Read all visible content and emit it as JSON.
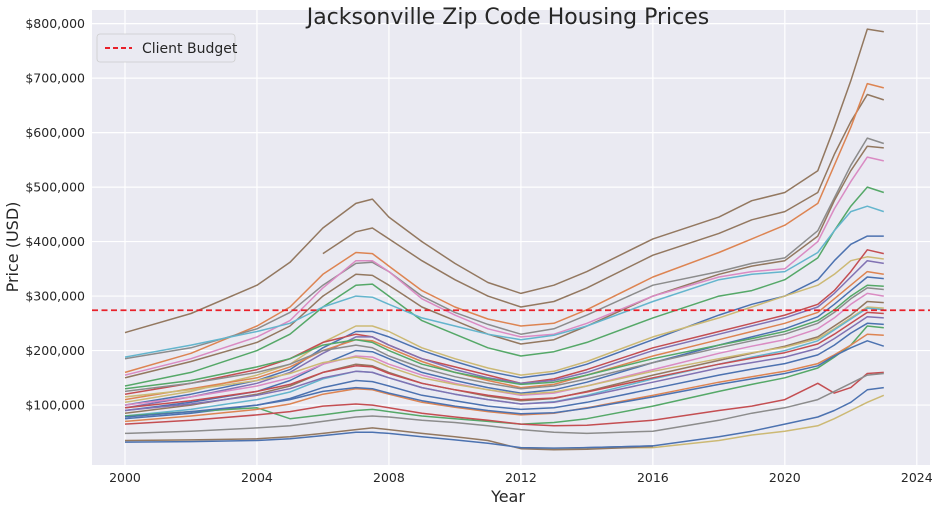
{
  "chart_data": {
    "type": "line",
    "title": "Jacksonville Zip Code Housing Prices",
    "xlabel": "Year",
    "ylabel": "Price (USD)",
    "xlim": [
      1999.0,
      2024.4
    ],
    "ylim": [
      -10000,
      825000
    ],
    "xticks": [
      2000,
      2004,
      2008,
      2012,
      2016,
      2020,
      2024
    ],
    "xtick_labels": [
      "2000",
      "2004",
      "2008",
      "2012",
      "2016",
      "2020",
      "2024"
    ],
    "yticks": [
      100000,
      200000,
      300000,
      400000,
      500000,
      600000,
      700000,
      800000
    ],
    "ytick_labels": [
      "$100,000",
      "$200,000",
      "$300,000",
      "$400,000",
      "$500,000",
      "$600,000",
      "$700,000",
      "$800,000"
    ],
    "grid": true,
    "legend": {
      "position": "top-left",
      "entries": [
        {
          "label": "Client Budget",
          "color": "#e8202a",
          "style": "dashed"
        }
      ]
    },
    "reference_line": {
      "label": "Client Budget",
      "y": 274000,
      "color": "#e8202a"
    },
    "x": [
      2000,
      2002,
      2004,
      2005,
      2006,
      2007,
      2007.5,
      2008,
      2009,
      2010,
      2011,
      2012,
      2013,
      2014,
      2016,
      2018,
      2019,
      2020,
      2021,
      2021.5,
      2022,
      2022.5,
      2023
    ],
    "series": [
      {
        "color": "#937860",
        "values": [
          233000,
          268000,
          320000,
          362000,
          425000,
          470000,
          478000,
          445000,
          400000,
          360000,
          325000,
          305000,
          320000,
          345000,
          405000,
          445000,
          475000,
          490000,
          530000,
          610000,
          695000,
          790000,
          785000
        ]
      },
      {
        "color": "#937860",
        "values": [
          null,
          null,
          null,
          null,
          378000,
          418000,
          425000,
          405000,
          365000,
          330000,
          300000,
          280000,
          290000,
          315000,
          375000,
          415000,
          440000,
          455000,
          490000,
          560000,
          620000,
          670000,
          660000
        ]
      },
      {
        "color": "#dd8452",
        "values": [
          160000,
          195000,
          245000,
          280000,
          340000,
          380000,
          378000,
          355000,
          310000,
          280000,
          258000,
          245000,
          250000,
          275000,
          335000,
          380000,
          405000,
          430000,
          470000,
          540000,
          610000,
          690000,
          682000
        ]
      },
      {
        "color": "#8c8c8c",
        "values": [
          185000,
          205000,
          240000,
          270000,
          320000,
          360000,
          362000,
          345000,
          300000,
          270000,
          248000,
          230000,
          240000,
          265000,
          320000,
          345000,
          360000,
          370000,
          420000,
          480000,
          540000,
          590000,
          580000
        ]
      },
      {
        "color": "#937860",
        "values": [
          150000,
          180000,
          215000,
          245000,
          300000,
          340000,
          338000,
          320000,
          280000,
          255000,
          230000,
          212000,
          220000,
          245000,
          300000,
          340000,
          355000,
          365000,
          410000,
          475000,
          530000,
          575000,
          572000
        ]
      },
      {
        "color": "#da8bc3",
        "values": [
          155000,
          185000,
          225000,
          255000,
          315000,
          365000,
          365000,
          345000,
          295000,
          265000,
          240000,
          225000,
          230000,
          250000,
          300000,
          335000,
          345000,
          350000,
          400000,
          460000,
          510000,
          555000,
          548000
        ]
      },
      {
        "color": "#55a868",
        "values": [
          135000,
          160000,
          200000,
          230000,
          280000,
          320000,
          322000,
          300000,
          255000,
          230000,
          205000,
          190000,
          198000,
          215000,
          260000,
          300000,
          310000,
          330000,
          370000,
          420000,
          465000,
          500000,
          490000
        ]
      },
      {
        "color": "#64b5cd",
        "values": [
          188000,
          210000,
          235000,
          250000,
          280000,
          300000,
          298000,
          285000,
          260000,
          245000,
          230000,
          220000,
          228000,
          245000,
          290000,
          330000,
          340000,
          345000,
          380000,
          420000,
          455000,
          465000,
          455000
        ]
      },
      {
        "color": "#4c72b0",
        "values": [
          100000,
          120000,
          145000,
          165000,
          205000,
          235000,
          235000,
          225000,
          200000,
          180000,
          162000,
          150000,
          158000,
          175000,
          220000,
          265000,
          285000,
          300000,
          330000,
          365000,
          395000,
          410000,
          410000
        ]
      },
      {
        "color": "#ccb974",
        "values": [
          105000,
          125000,
          155000,
          175000,
          215000,
          245000,
          245000,
          235000,
          205000,
          185000,
          168000,
          155000,
          162000,
          180000,
          225000,
          260000,
          280000,
          300000,
          320000,
          340000,
          365000,
          372000,
          368000
        ]
      },
      {
        "color": "#c44e52",
        "values": [
          120000,
          140000,
          165000,
          185000,
          215000,
          230000,
          225000,
          210000,
          185000,
          170000,
          155000,
          140000,
          148000,
          165000,
          205000,
          235000,
          250000,
          265000,
          285000,
          310000,
          345000,
          385000,
          378000
        ]
      },
      {
        "color": "#8172b3",
        "values": [
          95000,
          115000,
          140000,
          160000,
          195000,
          225000,
          225000,
          210000,
          185000,
          165000,
          150000,
          140000,
          145000,
          160000,
          200000,
          230000,
          245000,
          260000,
          280000,
          305000,
          335000,
          365000,
          360000
        ]
      },
      {
        "color": "#dd8452",
        "values": [
          110000,
          130000,
          150000,
          170000,
          200000,
          220000,
          218000,
          205000,
          180000,
          160000,
          145000,
          132000,
          138000,
          155000,
          190000,
          220000,
          235000,
          250000,
          270000,
          295000,
          320000,
          345000,
          340000
        ]
      },
      {
        "color": "#4c72b0",
        "values": [
          90000,
          105000,
          125000,
          145000,
          175000,
          200000,
          198000,
          185000,
          160000,
          145000,
          132000,
          122000,
          128000,
          142000,
          178000,
          210000,
          225000,
          240000,
          262000,
          285000,
          310000,
          335000,
          332000
        ]
      },
      {
        "color": "#55a868",
        "values": [
          130000,
          145000,
          170000,
          185000,
          210000,
          220000,
          215000,
          200000,
          175000,
          160000,
          148000,
          138000,
          142000,
          155000,
          185000,
          210000,
          222000,
          235000,
          255000,
          275000,
          300000,
          320000,
          318000
        ]
      },
      {
        "color": "#8c8c8c",
        "values": [
          125000,
          140000,
          160000,
          175000,
          200000,
          210000,
          205000,
          190000,
          168000,
          152000,
          140000,
          130000,
          135000,
          148000,
          178000,
          205000,
          218000,
          230000,
          250000,
          270000,
          295000,
          315000,
          312000
        ]
      },
      {
        "color": "#da8bc3",
        "values": [
          100000,
          115000,
          135000,
          150000,
          175000,
          190000,
          188000,
          175000,
          155000,
          140000,
          128000,
          118000,
          122000,
          135000,
          165000,
          195000,
          208000,
          220000,
          240000,
          260000,
          285000,
          305000,
          300000
        ]
      },
      {
        "color": "#937860",
        "values": [
          85000,
          100000,
          120000,
          135000,
          160000,
          175000,
          172000,
          160000,
          140000,
          128000,
          116000,
          108000,
          112000,
          125000,
          155000,
          182000,
          195000,
          208000,
          225000,
          245000,
          265000,
          290000,
          288000
        ]
      },
      {
        "color": "#ccb974",
        "values": [
          115000,
          128000,
          145000,
          158000,
          178000,
          188000,
          183000,
          170000,
          150000,
          138000,
          128000,
          120000,
          124000,
          135000,
          162000,
          185000,
          196000,
          206000,
          222000,
          240000,
          260000,
          280000,
          278000
        ]
      },
      {
        "color": "#64b5cd",
        "values": [
          80000,
          92000,
          110000,
          124000,
          148000,
          162000,
          160000,
          150000,
          132000,
          120000,
          110000,
          102000,
          106000,
          118000,
          148000,
          175000,
          188000,
          200000,
          218000,
          238000,
          258000,
          278000,
          275000
        ]
      },
      {
        "color": "#c44e52",
        "values": [
          95000,
          108000,
          125000,
          138000,
          160000,
          172000,
          170000,
          158000,
          140000,
          128000,
          118000,
          110000,
          113000,
          124000,
          150000,
          175000,
          186000,
          196000,
          212000,
          230000,
          250000,
          270000,
          268000
        ]
      },
      {
        "color": "#4c72b0",
        "values": [
          75000,
          85000,
          100000,
          112000,
          132000,
          145000,
          143000,
          135000,
          118000,
          108000,
          98000,
          92000,
          95000,
          105000,
          130000,
          155000,
          166000,
          176000,
          192000,
          210000,
          232000,
          250000,
          248000
        ]
      },
      {
        "color": "#8172b3",
        "values": [
          90000,
          102000,
          118000,
          130000,
          150000,
          162000,
          160000,
          150000,
          132000,
          120000,
          110000,
          102000,
          105000,
          116000,
          142000,
          168000,
          178000,
          188000,
          204000,
          222000,
          242000,
          262000,
          260000
        ]
      },
      {
        "color": "#55a868",
        "values": [
          80000,
          88000,
          95000,
          75000,
          82000,
          90000,
          92000,
          88000,
          80000,
          75000,
          70000,
          65000,
          68000,
          75000,
          98000,
          125000,
          138000,
          150000,
          168000,
          188000,
          210000,
          245000,
          242000
        ]
      },
      {
        "color": "#dd8452",
        "values": [
          70000,
          80000,
          92000,
          102000,
          120000,
          130000,
          128000,
          120000,
          105000,
          96000,
          88000,
          82000,
          85000,
          95000,
          118000,
          142000,
          152000,
          162000,
          176000,
          192000,
          210000,
          230000,
          228000
        ]
      },
      {
        "color": "#4c72b0",
        "values": [
          78000,
          88000,
          100000,
          110000,
          125000,
          132000,
          130000,
          122000,
          108000,
          98000,
          90000,
          84000,
          86000,
          94000,
          115000,
          138000,
          148000,
          158000,
          172000,
          190000,
          205000,
          218000,
          208000
        ]
      },
      {
        "color": "#c44e52",
        "values": [
          65000,
          72000,
          82000,
          88000,
          98000,
          102000,
          100000,
          95000,
          85000,
          78000,
          72000,
          65000,
          62000,
          63000,
          72000,
          90000,
          98000,
          110000,
          140000,
          122000,
          132000,
          158000,
          160000
        ]
      },
      {
        "color": "#4c72b0",
        "values": [
          null,
          null,
          null,
          null,
          null,
          null,
          null,
          null,
          null,
          null,
          null,
          20000,
          20000,
          22000,
          25000,
          42000,
          52000,
          65000,
          78000,
          90000,
          105000,
          128000,
          132000
        ]
      },
      {
        "color": "#ccb974",
        "values": [
          null,
          null,
          null,
          null,
          null,
          null,
          null,
          null,
          null,
          null,
          null,
          22000,
          20000,
          21000,
          22000,
          35000,
          45000,
          52000,
          62000,
          75000,
          90000,
          105000,
          118000
        ]
      },
      {
        "color": "#8c8c8c",
        "values": [
          48000,
          52000,
          58000,
          62000,
          70000,
          78000,
          80000,
          78000,
          72000,
          68000,
          62000,
          55000,
          50000,
          48000,
          52000,
          72000,
          85000,
          95000,
          110000,
          125000,
          140000,
          155000,
          158000
        ]
      },
      {
        "color": "#937860",
        "values": [
          35000,
          36000,
          38000,
          42000,
          48000,
          55000,
          58000,
          55000,
          48000,
          42000,
          35000,
          20000,
          18000,
          19000,
          24000,
          null,
          null,
          null,
          null,
          null,
          null,
          null,
          null
        ]
      },
      {
        "color": "#4c72b0",
        "values": [
          32000,
          33000,
          35000,
          38000,
          44000,
          50000,
          50000,
          48000,
          42000,
          36000,
          30000,
          22000,
          21000,
          22000,
          25000,
          null,
          null,
          null,
          null,
          null,
          null,
          null,
          null
        ]
      }
    ]
  }
}
